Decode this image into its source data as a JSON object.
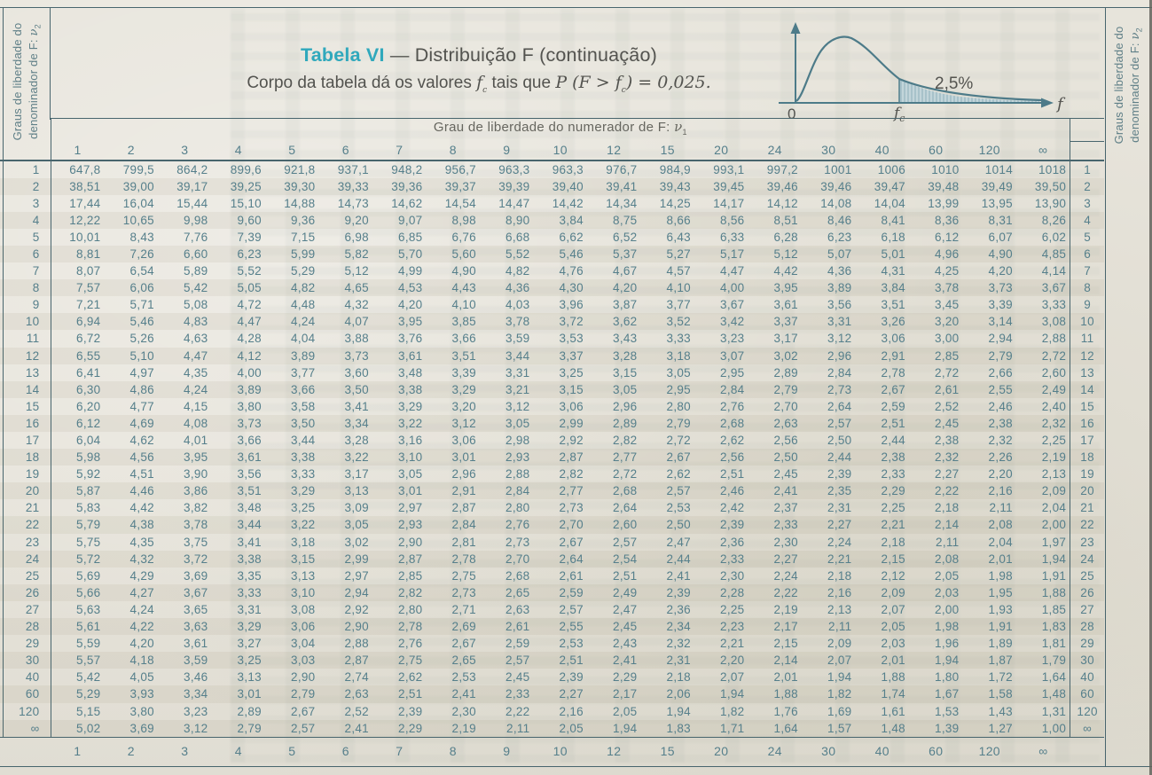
{
  "colors": {
    "ink": "#557f8b",
    "line": "#48656d",
    "accent": "#2fa8bc",
    "text-gray": "#53534f",
    "shade": "#c2d5da",
    "curve": "#4d7b89"
  },
  "title": {
    "table_name": "Tabela VI",
    "separator": " — ",
    "subtitle": "Distribuição F (continuação)",
    "body_line": {
      "prefix": "Corpo da tabela dá os valores ",
      "fc_symbol": "f",
      "fc_subscript": "c",
      "middle": " tais que ",
      "formula_start": "P (F > f",
      "formula_subscript": "c",
      "formula_end": ") = 0,025."
    }
  },
  "side_labels": {
    "line1": "Graus de liberdade do",
    "line2": "denominador de F: ",
    "nu": "ν",
    "nu_sub": "2"
  },
  "numerator_header": {
    "label": "Grau de liberdade do numerador de F: ",
    "nu": "ν",
    "nu_sub": "1"
  },
  "distribution_curve": {
    "tail_area_label": "2,5%",
    "axis_label": "f",
    "origin_label": "0",
    "critical_value_label": "f",
    "critical_value_sub": "c"
  },
  "table": {
    "column_headers": [
      "1",
      "2",
      "3",
      "4",
      "5",
      "6",
      "7",
      "8",
      "9",
      "10",
      "12",
      "15",
      "20",
      "24",
      "30",
      "40",
      "60",
      "120",
      "∞"
    ],
    "footer_column_headers": [
      "1",
      "2",
      "3",
      "4",
      "5",
      "6",
      "7",
      "8",
      "9",
      "10",
      "12",
      "15",
      "20",
      "24",
      "30",
      "40",
      "60",
      "120",
      "∞"
    ],
    "rows": [
      {
        "label": "1",
        "values": [
          "647,8",
          "799,5",
          "864,2",
          "899,6",
          "921,8",
          "937,1",
          "948,2",
          "956,7",
          "963,3",
          "963,3",
          "976,7",
          "984,9",
          "993,1",
          "997,2",
          "1001",
          "1006",
          "1010",
          "1014",
          "1018"
        ]
      },
      {
        "label": "2",
        "values": [
          "38,51",
          "39,00",
          "39,17",
          "39,25",
          "39,30",
          "39,33",
          "39,36",
          "39,37",
          "39,39",
          "39,40",
          "39,41",
          "39,43",
          "39,45",
          "39,46",
          "39,46",
          "39,47",
          "39,48",
          "39,49",
          "39,50"
        ]
      },
      {
        "label": "3",
        "values": [
          "17,44",
          "16,04",
          "15,44",
          "15,10",
          "14,88",
          "14,73",
          "14,62",
          "14,54",
          "14,47",
          "14,42",
          "14,34",
          "14,25",
          "14,17",
          "14,12",
          "14,08",
          "14,04",
          "13,99",
          "13,95",
          "13,90"
        ]
      },
      {
        "label": "4",
        "values": [
          "12,22",
          "10,65",
          "9,98",
          "9,60",
          "9,36",
          "9,20",
          "9,07",
          "8,98",
          "8,90",
          "3,84",
          "8,75",
          "8,66",
          "8,56",
          "8,51",
          "8,46",
          "8,41",
          "8,36",
          "8,31",
          "8,26"
        ]
      },
      {
        "label": "5",
        "values": [
          "10,01",
          "8,43",
          "7,76",
          "7,39",
          "7,15",
          "6,98",
          "6,85",
          "6,76",
          "6,68",
          "6,62",
          "6,52",
          "6,43",
          "6,33",
          "6,28",
          "6,23",
          "6,18",
          "6,12",
          "6,07",
          "6,02"
        ]
      },
      {
        "label": "6",
        "values": [
          "8,81",
          "7,26",
          "6,60",
          "6,23",
          "5,99",
          "5,82",
          "5,70",
          "5,60",
          "5,52",
          "5,46",
          "5,37",
          "5,27",
          "5,17",
          "5,12",
          "5,07",
          "5,01",
          "4,96",
          "4,90",
          "4,85"
        ]
      },
      {
        "label": "7",
        "values": [
          "8,07",
          "6,54",
          "5,89",
          "5,52",
          "5,29",
          "5,12",
          "4,99",
          "4,90",
          "4,82",
          "4,76",
          "4,67",
          "4,57",
          "4,47",
          "4,42",
          "4,36",
          "4,31",
          "4,25",
          "4,20",
          "4,14"
        ]
      },
      {
        "label": "8",
        "values": [
          "7,57",
          "6,06",
          "5,42",
          "5,05",
          "4,82",
          "4,65",
          "4,53",
          "4,43",
          "4,36",
          "4,30",
          "4,20",
          "4,10",
          "4,00",
          "3,95",
          "3,89",
          "3,84",
          "3,78",
          "3,73",
          "3,67"
        ]
      },
      {
        "label": "9",
        "values": [
          "7,21",
          "5,71",
          "5,08",
          "4,72",
          "4,48",
          "4,32",
          "4,20",
          "4,10",
          "4,03",
          "3,96",
          "3,87",
          "3,77",
          "3,67",
          "3,61",
          "3,56",
          "3,51",
          "3,45",
          "3,39",
          "3,33"
        ]
      },
      {
        "label": "10",
        "values": [
          "6,94",
          "5,46",
          "4,83",
          "4,47",
          "4,24",
          "4,07",
          "3,95",
          "3,85",
          "3,78",
          "3,72",
          "3,62",
          "3,52",
          "3,42",
          "3,37",
          "3,31",
          "3,26",
          "3,20",
          "3,14",
          "3,08"
        ]
      },
      {
        "label": "11",
        "values": [
          "6,72",
          "5,26",
          "4,63",
          "4,28",
          "4,04",
          "3,88",
          "3,76",
          "3,66",
          "3,59",
          "3,53",
          "3,43",
          "3,33",
          "3,23",
          "3,17",
          "3,12",
          "3,06",
          "3,00",
          "2,94",
          "2,88"
        ]
      },
      {
        "label": "12",
        "values": [
          "6,55",
          "5,10",
          "4,47",
          "4,12",
          "3,89",
          "3,73",
          "3,61",
          "3,51",
          "3,44",
          "3,37",
          "3,28",
          "3,18",
          "3,07",
          "3,02",
          "2,96",
          "2,91",
          "2,85",
          "2,79",
          "2,72"
        ]
      },
      {
        "label": "13",
        "values": [
          "6,41",
          "4,97",
          "4,35",
          "4,00",
          "3,77",
          "3,60",
          "3,48",
          "3,39",
          "3,31",
          "3,25",
          "3,15",
          "3,05",
          "2,95",
          "2,89",
          "2,84",
          "2,78",
          "2,72",
          "2,66",
          "2,60"
        ]
      },
      {
        "label": "14",
        "values": [
          "6,30",
          "4,86",
          "4,24",
          "3,89",
          "3,66",
          "3,50",
          "3,38",
          "3,29",
          "3,21",
          "3,15",
          "3,05",
          "2,95",
          "2,84",
          "2,79",
          "2,73",
          "2,67",
          "2,61",
          "2,55",
          "2,49"
        ]
      },
      {
        "label": "15",
        "values": [
          "6,20",
          "4,77",
          "4,15",
          "3,80",
          "3,58",
          "3,41",
          "3,29",
          "3,20",
          "3,12",
          "3,06",
          "2,96",
          "2,80",
          "2,76",
          "2,70",
          "2,64",
          "2,59",
          "2,52",
          "2,46",
          "2,40"
        ]
      },
      {
        "label": "16",
        "values": [
          "6,12",
          "4,69",
          "4,08",
          "3,73",
          "3,50",
          "3,34",
          "3,22",
          "3,12",
          "3,05",
          "2,99",
          "2,89",
          "2,79",
          "2,68",
          "2,63",
          "2,57",
          "2,51",
          "2,45",
          "2,38",
          "2,32"
        ]
      },
      {
        "label": "17",
        "values": [
          "6,04",
          "4,62",
          "4,01",
          "3,66",
          "3,44",
          "3,28",
          "3,16",
          "3,06",
          "2,98",
          "2,92",
          "2,82",
          "2,72",
          "2,62",
          "2,56",
          "2,50",
          "2,44",
          "2,38",
          "2,32",
          "2,25"
        ]
      },
      {
        "label": "18",
        "values": [
          "5,98",
          "4,56",
          "3,95",
          "3,61",
          "3,38",
          "3,22",
          "3,10",
          "3,01",
          "2,93",
          "2,87",
          "2,77",
          "2,67",
          "2,56",
          "2,50",
          "2,44",
          "2,38",
          "2,32",
          "2,26",
          "2,19"
        ]
      },
      {
        "label": "19",
        "values": [
          "5,92",
          "4,51",
          "3,90",
          "3,56",
          "3,33",
          "3,17",
          "3,05",
          "2,96",
          "2,88",
          "2,82",
          "2,72",
          "2,62",
          "2,51",
          "2,45",
          "2,39",
          "2,33",
          "2,27",
          "2,20",
          "2,13"
        ]
      },
      {
        "label": "20",
        "values": [
          "5,87",
          "4,46",
          "3,86",
          "3,51",
          "3,29",
          "3,13",
          "3,01",
          "2,91",
          "2,84",
          "2,77",
          "2,68",
          "2,57",
          "2,46",
          "2,41",
          "2,35",
          "2,29",
          "2,22",
          "2,16",
          "2,09"
        ]
      },
      {
        "label": "21",
        "values": [
          "5,83",
          "4,42",
          "3,82",
          "3,48",
          "3,25",
          "3,09",
          "2,97",
          "2,87",
          "2,80",
          "2,73",
          "2,64",
          "2,53",
          "2,42",
          "2,37",
          "2,31",
          "2,25",
          "2,18",
          "2,11",
          "2,04"
        ]
      },
      {
        "label": "22",
        "values": [
          "5,79",
          "4,38",
          "3,78",
          "3,44",
          "3,22",
          "3,05",
          "2,93",
          "2,84",
          "2,76",
          "2,70",
          "2,60",
          "2,50",
          "2,39",
          "2,33",
          "2,27",
          "2,21",
          "2,14",
          "2,08",
          "2,00"
        ]
      },
      {
        "label": "23",
        "values": [
          "5,75",
          "4,35",
          "3,75",
          "3,41",
          "3,18",
          "3,02",
          "2,90",
          "2,81",
          "2,73",
          "2,67",
          "2,57",
          "2,47",
          "2,36",
          "2,30",
          "2,24",
          "2,18",
          "2,11",
          "2,04",
          "1,97"
        ]
      },
      {
        "label": "24",
        "values": [
          "5,72",
          "4,32",
          "3,72",
          "3,38",
          "3,15",
          "2,99",
          "2,87",
          "2,78",
          "2,70",
          "2,64",
          "2,54",
          "2,44",
          "2,33",
          "2,27",
          "2,21",
          "2,15",
          "2,08",
          "2,01",
          "1,94"
        ]
      },
      {
        "label": "25",
        "values": [
          "5,69",
          "4,29",
          "3,69",
          "3,35",
          "3,13",
          "2,97",
          "2,85",
          "2,75",
          "2,68",
          "2,61",
          "2,51",
          "2,41",
          "2,30",
          "2,24",
          "2,18",
          "2,12",
          "2,05",
          "1,98",
          "1,91"
        ]
      },
      {
        "label": "26",
        "values": [
          "5,66",
          "4,27",
          "3,67",
          "3,33",
          "3,10",
          "2,94",
          "2,82",
          "2,73",
          "2,65",
          "2,59",
          "2,49",
          "2,39",
          "2,28",
          "2,22",
          "2,16",
          "2,09",
          "2,03",
          "1,95",
          "1,88"
        ]
      },
      {
        "label": "27",
        "values": [
          "5,63",
          "4,24",
          "3,65",
          "3,31",
          "3,08",
          "2,92",
          "2,80",
          "2,71",
          "2,63",
          "2,57",
          "2,47",
          "2,36",
          "2,25",
          "2,19",
          "2,13",
          "2,07",
          "2,00",
          "1,93",
          "1,85"
        ]
      },
      {
        "label": "28",
        "values": [
          "5,61",
          "4,22",
          "3,63",
          "3,29",
          "3,06",
          "2,90",
          "2,78",
          "2,69",
          "2,61",
          "2,55",
          "2,45",
          "2,34",
          "2,23",
          "2,17",
          "2,11",
          "2,05",
          "1,98",
          "1,91",
          "1,83"
        ]
      },
      {
        "label": "29",
        "values": [
          "5,59",
          "4,20",
          "3,61",
          "3,27",
          "3,04",
          "2,88",
          "2,76",
          "2,67",
          "2,59",
          "2,53",
          "2,43",
          "2,32",
          "2,21",
          "2,15",
          "2,09",
          "2,03",
          "1,96",
          "1,89",
          "1,81"
        ]
      },
      {
        "label": "30",
        "values": [
          "5,57",
          "4,18",
          "3,59",
          "3,25",
          "3,03",
          "2,87",
          "2,75",
          "2,65",
          "2,57",
          "2,51",
          "2,41",
          "2,31",
          "2,20",
          "2,14",
          "2,07",
          "2,01",
          "1,94",
          "1,87",
          "1,79"
        ]
      },
      {
        "label": "40",
        "values": [
          "5,42",
          "4,05",
          "3,46",
          "3,13",
          "2,90",
          "2,74",
          "2,62",
          "2,53",
          "2,45",
          "2,39",
          "2,29",
          "2,18",
          "2,07",
          "2,01",
          "1,94",
          "1,88",
          "1,80",
          "1,72",
          "1,64"
        ]
      },
      {
        "label": "60",
        "values": [
          "5,29",
          "3,93",
          "3,34",
          "3,01",
          "2,79",
          "2,63",
          "2,51",
          "2,41",
          "2,33",
          "2,27",
          "2,17",
          "2,06",
          "1,94",
          "1,88",
          "1,82",
          "1,74",
          "1,67",
          "1,58",
          "1,48"
        ]
      },
      {
        "label": "120",
        "values": [
          "5,15",
          "3,80",
          "3,23",
          "2,89",
          "2,67",
          "2,52",
          "2,39",
          "2,30",
          "2,22",
          "2,16",
          "2,05",
          "1,94",
          "1,82",
          "1,76",
          "1,69",
          "1,61",
          "1,53",
          "1,43",
          "1,31"
        ]
      },
      {
        "label": "∞",
        "values": [
          "5,02",
          "3,69",
          "3,12",
          "2,79",
          "2,57",
          "2,41",
          "2,29",
          "2,19",
          "2,11",
          "2,05",
          "1,94",
          "1,83",
          "1,71",
          "1,64",
          "1,57",
          "1,48",
          "1,39",
          "1,27",
          "1,00"
        ]
      }
    ]
  }
}
